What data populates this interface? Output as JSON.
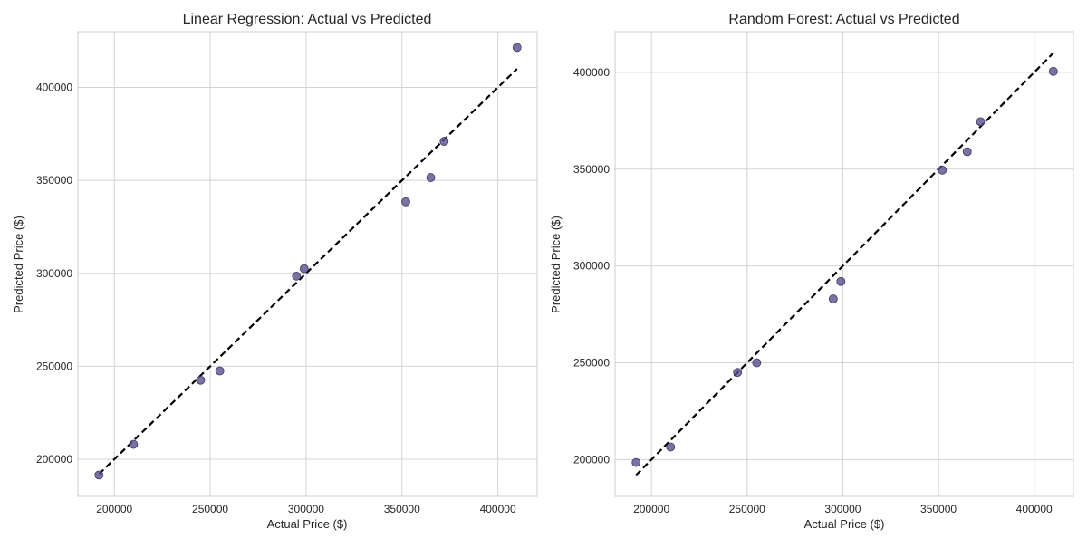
{
  "chart_data": [
    {
      "type": "scatter",
      "title": "Linear Regression: Actual vs Predicted",
      "xlabel": "Actual Price ($)",
      "ylabel": "Predicted Price ($)",
      "xlim": [
        181000,
        420500
      ],
      "ylim": [
        180000,
        430000
      ],
      "xticks": [
        200000,
        250000,
        300000,
        350000,
        400000
      ],
      "yticks": [
        200000,
        250000,
        300000,
        350000,
        400000
      ],
      "grid": true,
      "point_color": "#58508d",
      "reference_line": {
        "style": "dashed",
        "color": "#000000",
        "from": [
          192000,
          192000
        ],
        "to": [
          410000,
          410000
        ]
      },
      "points": [
        {
          "x": 192000,
          "y": 191500
        },
        {
          "x": 210000,
          "y": 208000
        },
        {
          "x": 245000,
          "y": 242500
        },
        {
          "x": 255000,
          "y": 247500
        },
        {
          "x": 295000,
          "y": 298500
        },
        {
          "x": 299000,
          "y": 302500
        },
        {
          "x": 352000,
          "y": 338500
        },
        {
          "x": 365000,
          "y": 351500
        },
        {
          "x": 372000,
          "y": 371000
        },
        {
          "x": 410000,
          "y": 421500
        }
      ]
    },
    {
      "type": "scatter",
      "title": "Random Forest: Actual vs Predicted",
      "xlabel": "Actual Price ($)",
      "ylabel": "Predicted Price ($)",
      "xlim": [
        181000,
        420500
      ],
      "ylim": [
        181000,
        421000
      ],
      "xticks": [
        200000,
        250000,
        300000,
        350000,
        400000
      ],
      "yticks": [
        200000,
        250000,
        300000,
        350000,
        400000
      ],
      "grid": true,
      "point_color": "#58508d",
      "reference_line": {
        "style": "dashed",
        "color": "#000000",
        "from": [
          192000,
          192000
        ],
        "to": [
          410000,
          410000
        ]
      },
      "points": [
        {
          "x": 192000,
          "y": 198500
        },
        {
          "x": 210000,
          "y": 206500
        },
        {
          "x": 245000,
          "y": 245000
        },
        {
          "x": 255000,
          "y": 250000
        },
        {
          "x": 295000,
          "y": 283000
        },
        {
          "x": 299000,
          "y": 292000
        },
        {
          "x": 352000,
          "y": 349500
        },
        {
          "x": 365000,
          "y": 359000
        },
        {
          "x": 372000,
          "y": 374500
        },
        {
          "x": 410000,
          "y": 400500
        }
      ]
    }
  ]
}
